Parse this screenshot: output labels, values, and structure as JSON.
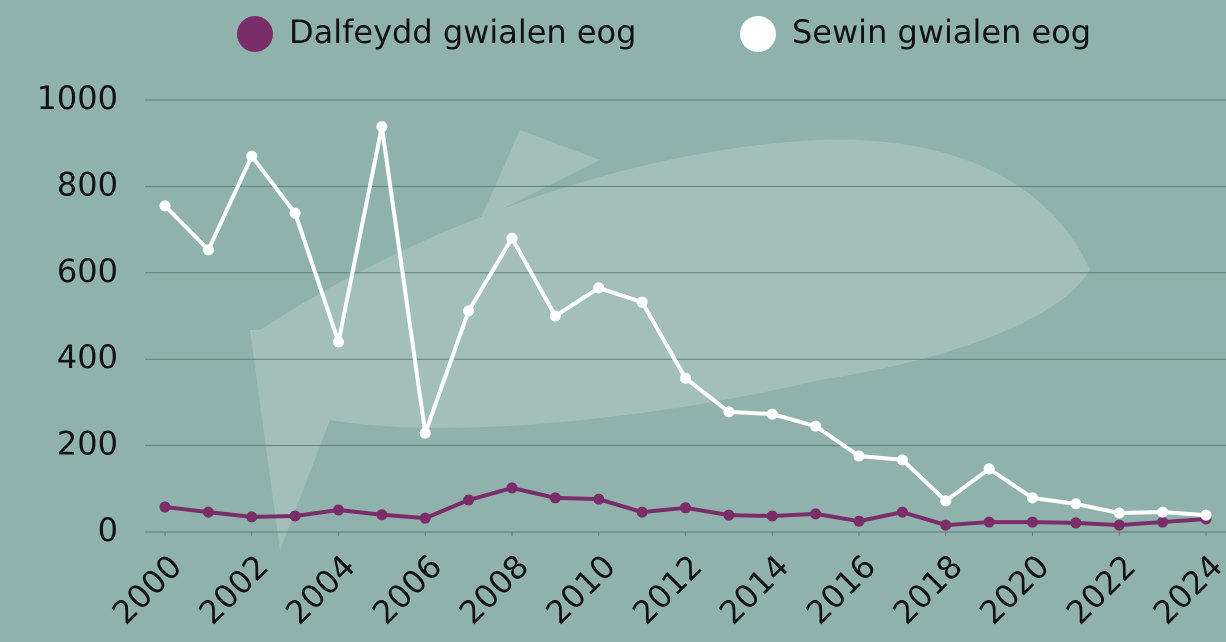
{
  "chart_data": {
    "type": "line",
    "x": [
      2000,
      2001,
      2002,
      2003,
      2004,
      2005,
      2006,
      2007,
      2008,
      2009,
      2010,
      2011,
      2012,
      2013,
      2014,
      2015,
      2016,
      2017,
      2018,
      2019,
      2020,
      2021,
      2022,
      2023,
      2024
    ],
    "series": [
      {
        "name": "Dalfeydd gwialen eog",
        "color": "#7b2d6a",
        "values": [
          58,
          46,
          35,
          37,
          51,
          40,
          32,
          74,
          102,
          79,
          76,
          46,
          56,
          39,
          37,
          42,
          25,
          46,
          16,
          23,
          23,
          21,
          16,
          23,
          30
        ]
      },
      {
        "name": "Sewin gwialen eog",
        "color": "#ffffff",
        "values": [
          755,
          653,
          870,
          738,
          440,
          938,
          229,
          512,
          680,
          500,
          565,
          532,
          356,
          278,
          273,
          245,
          176,
          167,
          72,
          146,
          79,
          65,
          44,
          46,
          39
        ]
      }
    ],
    "xlim": [
      2000,
      2024
    ],
    "xticks": [
      2000,
      2002,
      2004,
      2006,
      2008,
      2010,
      2012,
      2014,
      2016,
      2018,
      2020,
      2022,
      2024
    ],
    "ylim": [
      0,
      1000
    ],
    "yticks": [
      0,
      200,
      400,
      600,
      800,
      1000
    ],
    "grid": true
  }
}
